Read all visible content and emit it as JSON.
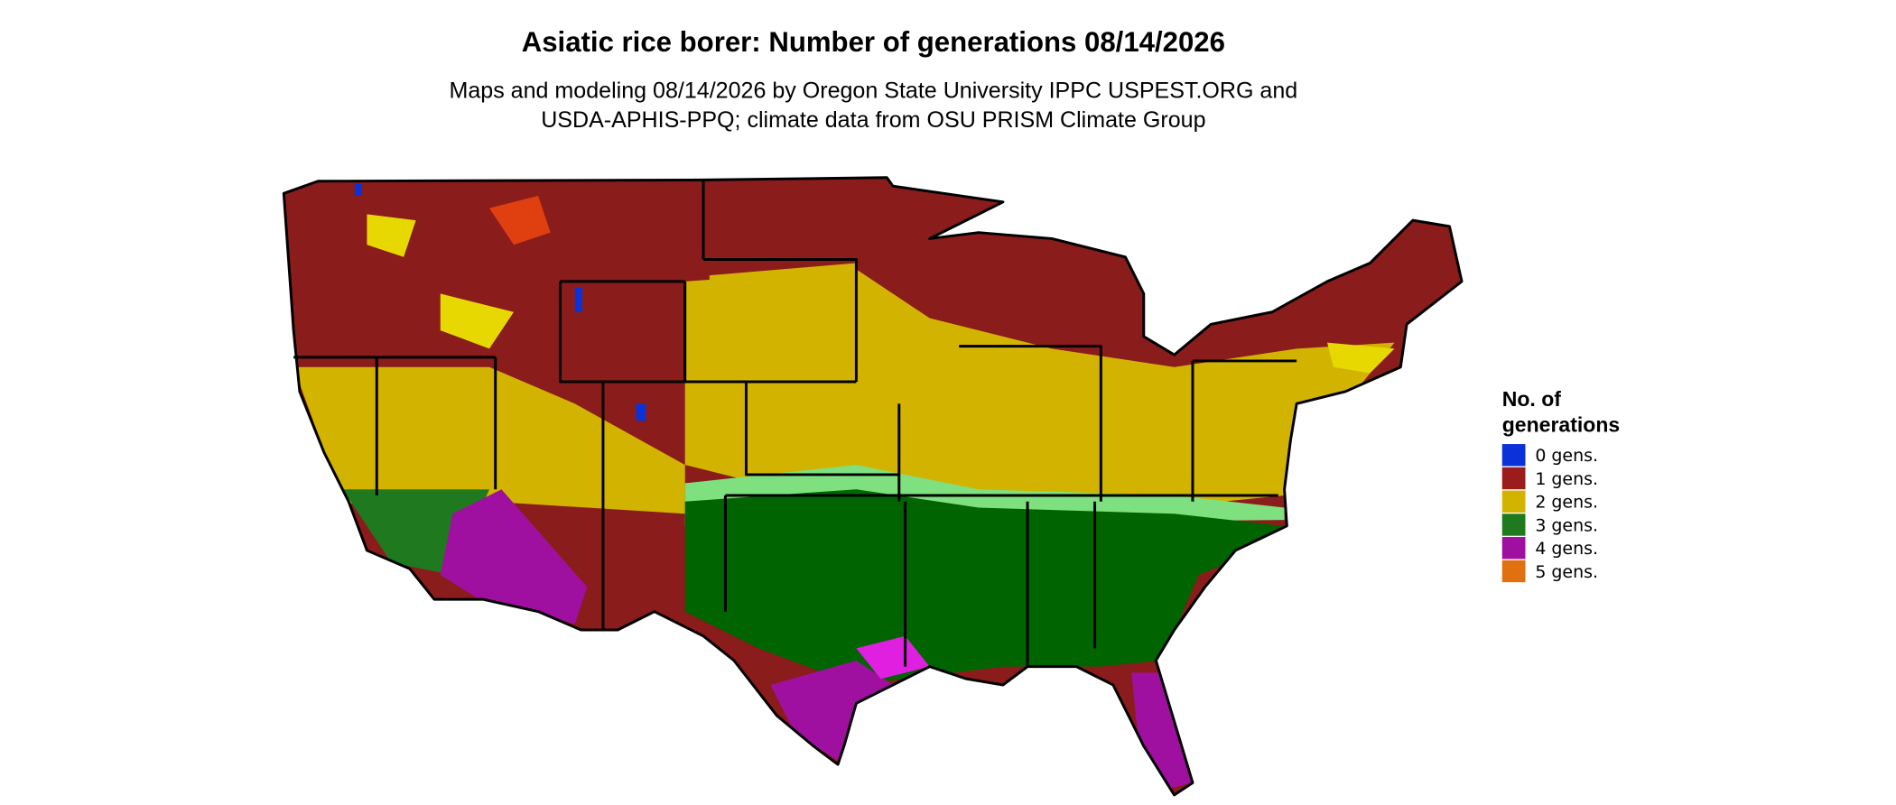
{
  "title": "Asiatic rice borer: Number of generations 08/14/2026",
  "subtitle": [
    "Maps and modeling 08/14/2026 by Oregon State University IPPC USPEST.ORG and",
    "USDA-APHIS-PPQ; climate data from OSU PRISM Climate Group"
  ],
  "legend": {
    "title": [
      "No. of",
      "generations"
    ],
    "items": [
      {
        "label": "0 gens.",
        "color": "#0a32d8"
      },
      {
        "label": "1 gens.",
        "color": "#9b1c1c"
      },
      {
        "label": "2 gens.",
        "color": "#d2b400"
      },
      {
        "label": "3 gens.",
        "color": "#1f7a1f"
      },
      {
        "label": "4 gens.",
        "color": "#a010a0"
      },
      {
        "label": "5 gens.",
        "color": "#e07010"
      }
    ]
  }
}
